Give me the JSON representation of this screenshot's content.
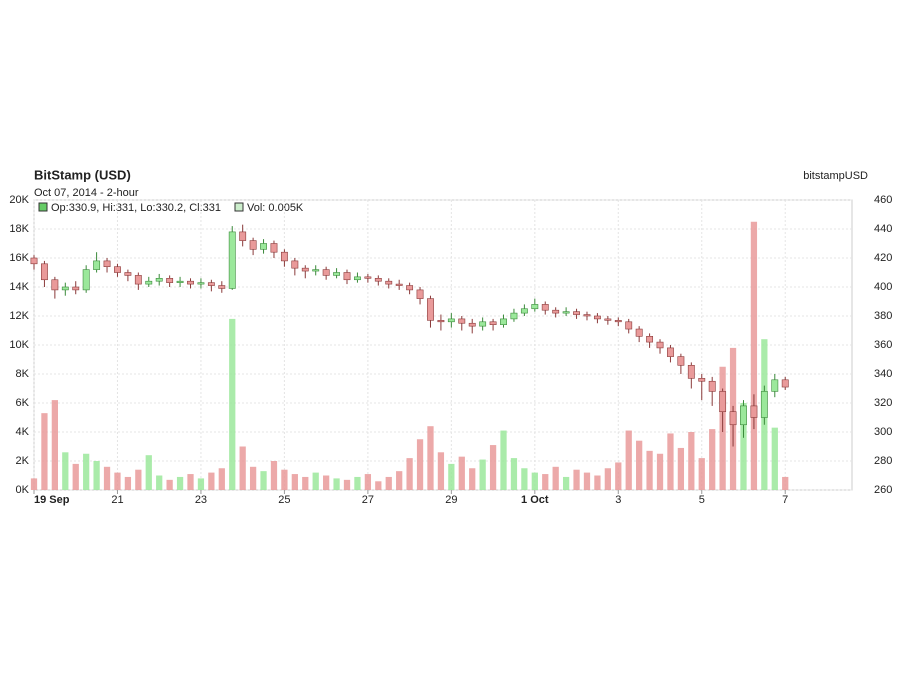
{
  "chart_data": {
    "type": "candlestick",
    "title": "BitStamp (USD)",
    "subtitle": "Oct 07, 2014 - 2-hour",
    "symbol": "bitstampUSD",
    "info": {
      "ohlc": "Op:330.9, Hi:331, Lo:330.2, Cl:331",
      "volume": "Vol: 0.005K"
    },
    "up_color": "#9be89b",
    "down_color": "#e99a9a",
    "up_edge": "#3a8a3a",
    "down_edge": "#8a3a3a",
    "grid": true,
    "xlim": [
      0,
      19.6
    ],
    "xticks": [
      {
        "value": 0,
        "label": "19 Sep"
      },
      {
        "value": 2,
        "label": "21"
      },
      {
        "value": 4,
        "label": "23"
      },
      {
        "value": 6,
        "label": "25"
      },
      {
        "value": 8,
        "label": "27"
      },
      {
        "value": 10,
        "label": "29"
      },
      {
        "value": 12,
        "label": "1 Oct"
      },
      {
        "value": 14,
        "label": "3"
      },
      {
        "value": 16,
        "label": "5"
      },
      {
        "value": 18,
        "label": "7"
      }
    ],
    "ylim": [
      0,
      20000
    ],
    "yticks": [
      {
        "value": 0,
        "label": "0K"
      },
      {
        "value": 2000,
        "label": "2K"
      },
      {
        "value": 4000,
        "label": "4K"
      },
      {
        "value": 6000,
        "label": "6K"
      },
      {
        "value": 8000,
        "label": "8K"
      },
      {
        "value": 10000,
        "label": "10K"
      },
      {
        "value": 12000,
        "label": "12K"
      },
      {
        "value": 14000,
        "label": "14K"
      },
      {
        "value": 16000,
        "label": "16K"
      },
      {
        "value": 18000,
        "label": "18K"
      },
      {
        "value": 20000,
        "label": "20K"
      }
    ],
    "y2lim": [
      260,
      460
    ],
    "y2ticks": [
      260,
      280,
      300,
      320,
      340,
      360,
      380,
      400,
      420,
      440,
      460
    ],
    "x": [
      0,
      0.25,
      0.5,
      0.75,
      1,
      1.25,
      1.5,
      1.75,
      2,
      2.25,
      2.5,
      2.75,
      3,
      3.25,
      3.5,
      3.75,
      4,
      4.25,
      4.5,
      4.75,
      5,
      5.25,
      5.5,
      5.75,
      6,
      6.25,
      6.5,
      6.75,
      7,
      7.25,
      7.5,
      7.75,
      8,
      8.25,
      8.5,
      8.75,
      9,
      9.25,
      9.5,
      9.75,
      10,
      10.25,
      10.5,
      10.75,
      11,
      11.25,
      11.5,
      11.75,
      12,
      12.25,
      12.5,
      12.75,
      13,
      13.25,
      13.5,
      13.75,
      14,
      14.25,
      14.5,
      14.75,
      15,
      15.25,
      15.5,
      15.75,
      16,
      16.25,
      16.5,
      16.75,
      17,
      17.25,
      17.5,
      17.75,
      18
    ],
    "open": [
      420,
      416,
      405,
      398,
      400,
      398,
      412,
      418,
      414,
      410,
      408,
      402,
      404,
      406,
      403,
      404,
      402,
      403,
      401,
      399,
      438,
      432,
      426,
      430,
      424,
      418,
      413,
      411,
      412,
      408,
      410,
      405,
      407,
      406,
      404,
      402,
      401,
      398,
      392,
      377,
      376,
      378,
      375,
      373,
      376,
      374,
      378,
      382,
      385,
      388,
      384,
      382,
      383,
      381,
      380,
      378,
      377,
      376,
      371,
      366,
      362,
      358,
      352,
      346,
      337,
      335,
      328,
      314,
      305,
      318,
      310,
      328,
      336
    ],
    "high": [
      422,
      418,
      407,
      403,
      404,
      415,
      424,
      420,
      416,
      412,
      410,
      407,
      409,
      408,
      407,
      406,
      406,
      405,
      404,
      442,
      443,
      434,
      433,
      432,
      426,
      420,
      415,
      415,
      414,
      413,
      412,
      410,
      409,
      408,
      406,
      405,
      403,
      400,
      394,
      381,
      382,
      380,
      378,
      379,
      378,
      381,
      385,
      388,
      392,
      390,
      386,
      386,
      385,
      383,
      382,
      380,
      379,
      378,
      373,
      368,
      364,
      360,
      354,
      348,
      340,
      338,
      330,
      318,
      322,
      326,
      332,
      340,
      338
    ],
    "low": [
      412,
      400,
      392,
      394,
      395,
      396,
      410,
      410,
      407,
      404,
      398,
      400,
      401,
      400,
      400,
      399,
      399,
      397,
      396,
      398,
      428,
      422,
      423,
      420,
      414,
      408,
      406,
      408,
      405,
      406,
      402,
      403,
      403,
      401,
      399,
      398,
      395,
      388,
      372,
      370,
      372,
      370,
      368,
      370,
      370,
      372,
      376,
      380,
      383,
      381,
      379,
      380,
      378,
      377,
      375,
      374,
      373,
      368,
      362,
      358,
      354,
      348,
      340,
      330,
      322,
      318,
      300,
      290,
      296,
      302,
      305,
      324,
      329
    ],
    "close": [
      416,
      405,
      398,
      400,
      398,
      412,
      418,
      414,
      410,
      408,
      402,
      404,
      406,
      403,
      404,
      402,
      403,
      401,
      399,
      438,
      432,
      426,
      430,
      424,
      418,
      413,
      411,
      412,
      408,
      410,
      405,
      407,
      406,
      404,
      402,
      401,
      398,
      392,
      377,
      376,
      378,
      375,
      373,
      376,
      374,
      378,
      382,
      385,
      388,
      384,
      382,
      383,
      381,
      380,
      378,
      377,
      376,
      371,
      366,
      362,
      358,
      352,
      346,
      337,
      335,
      328,
      314,
      305,
      318,
      310,
      328,
      336,
      331
    ],
    "volume": [
      800,
      5300,
      6200,
      2600,
      1800,
      2500,
      2000,
      1600,
      1200,
      900,
      1400,
      2400,
      1000,
      700,
      900,
      1100,
      800,
      1200,
      1500,
      11800,
      3000,
      1600,
      1300,
      2000,
      1400,
      1100,
      900,
      1200,
      1000,
      800,
      700,
      900,
      1100,
      600,
      900,
      1300,
      2200,
      3500,
      4400,
      2600,
      1800,
      2300,
      1500,
      2100,
      3100,
      4100,
      2200,
      1500,
      1200,
      1100,
      1600,
      900,
      1400,
      1200,
      1000,
      1500,
      1900,
      4100,
      3400,
      2700,
      2500,
      3900,
      2900,
      4000,
      2200,
      4200,
      8500,
      9800,
      6000,
      18500,
      10400,
      4300,
      900
    ]
  }
}
